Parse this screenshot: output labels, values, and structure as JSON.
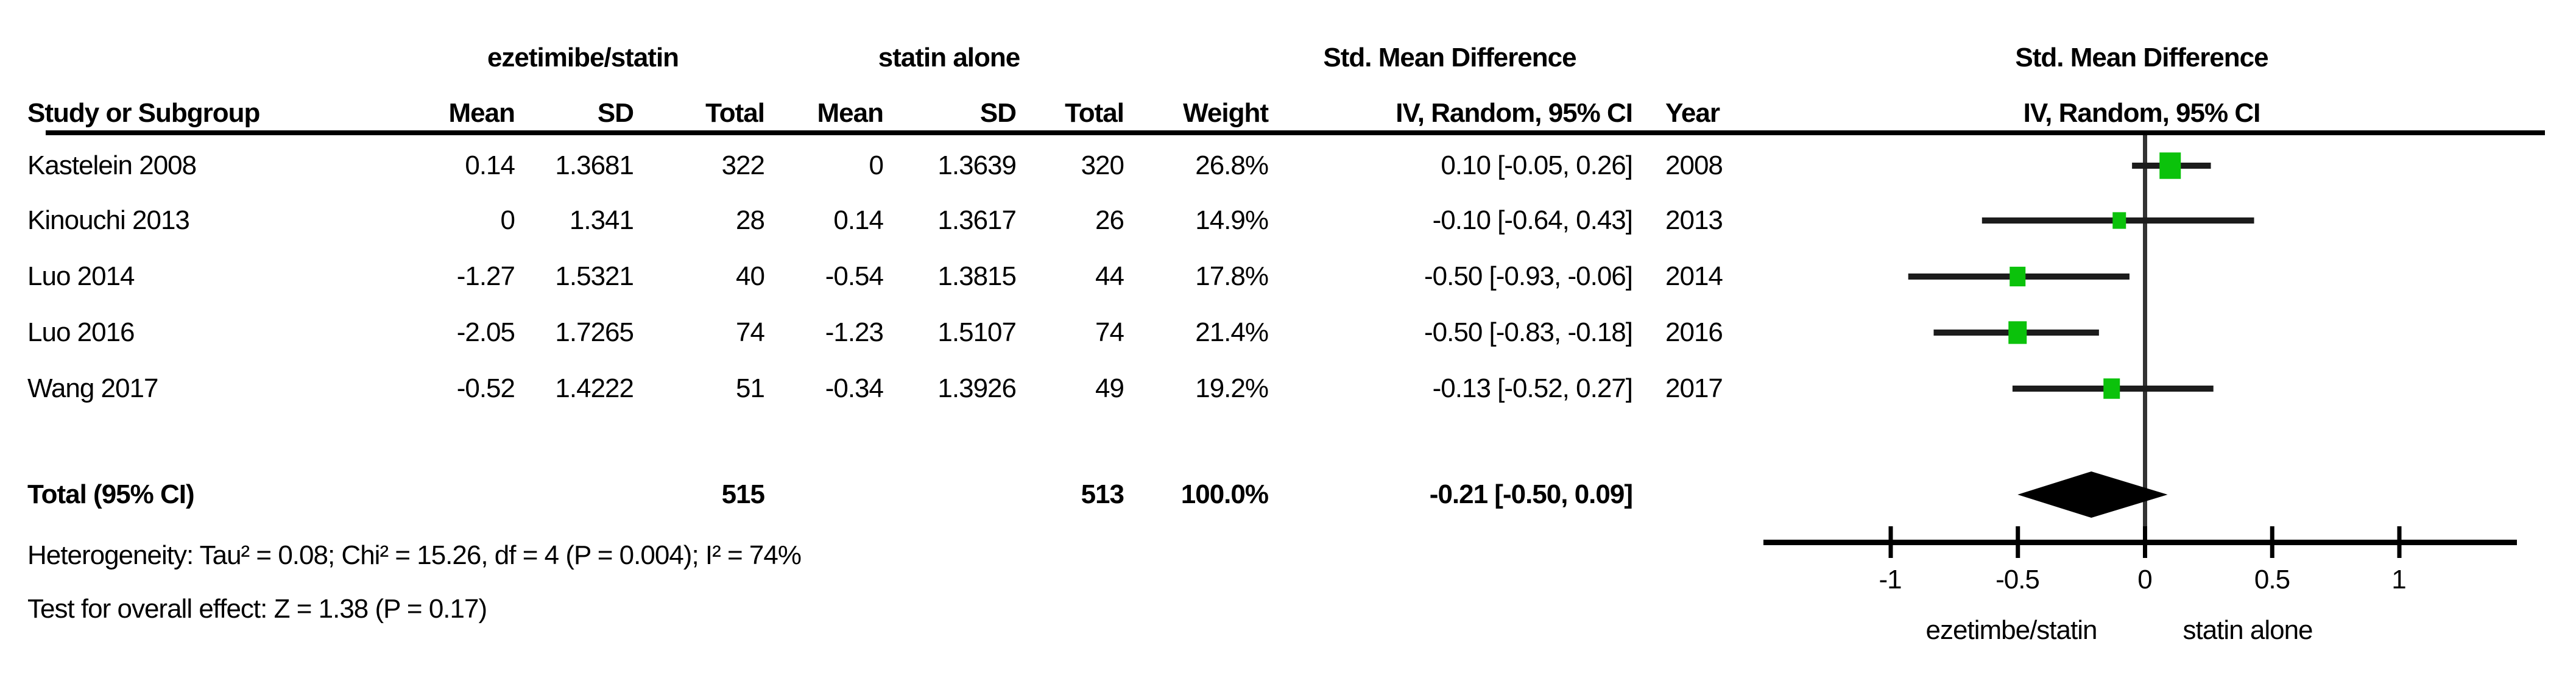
{
  "header": {
    "group1": "ezetimibe/statin",
    "group2": "statin alone",
    "smd_col_title": "Std. Mean Difference",
    "plot_title_line1": "Std. Mean Difference",
    "plot_title_line2": "IV, Random, 95% CI",
    "cols": {
      "study": "Study or Subgroup",
      "mean": "Mean",
      "sd": "SD",
      "total": "Total",
      "weight": "Weight",
      "ci": "IV, Random, 95% CI",
      "year": "Year"
    }
  },
  "rows": [
    {
      "study": "Kastelein 2008",
      "mean1": "0.14",
      "sd1": "1.3681",
      "total1": "322",
      "mean2": "0",
      "sd2": "1.3639",
      "total2": "320",
      "weight": "26.8%",
      "ci": "0.10 [-0.05, 0.26]",
      "year": "2008"
    },
    {
      "study": "Kinouchi 2013",
      "mean1": "0",
      "sd1": "1.341",
      "total1": "28",
      "mean2": "0.14",
      "sd2": "1.3617",
      "total2": "26",
      "weight": "14.9%",
      "ci": "-0.10 [-0.64, 0.43]",
      "year": "2013"
    },
    {
      "study": "Luo 2014",
      "mean1": "-1.27",
      "sd1": "1.5321",
      "total1": "40",
      "mean2": "-0.54",
      "sd2": "1.3815",
      "total2": "44",
      "weight": "17.8%",
      "ci": "-0.50 [-0.93, -0.06]",
      "year": "2014"
    },
    {
      "study": "Luo 2016",
      "mean1": "-2.05",
      "sd1": "1.7265",
      "total1": "74",
      "mean2": "-1.23",
      "sd2": "1.5107",
      "total2": "74",
      "weight": "21.4%",
      "ci": "-0.50 [-0.83, -0.18]",
      "year": "2016"
    },
    {
      "study": "Wang 2017",
      "mean1": "-0.52",
      "sd1": "1.4222",
      "total1": "51",
      "mean2": "-0.34",
      "sd2": "1.3926",
      "total2": "49",
      "weight": "19.2%",
      "ci": "-0.13 [-0.52, 0.27]",
      "year": "2017"
    }
  ],
  "total_row": {
    "label": "Total (95% CI)",
    "total1": "515",
    "total2": "513",
    "weight": "100.0%",
    "ci": "-0.21 [-0.50, 0.09]"
  },
  "footer": {
    "heterogeneity": "Heterogeneity: Tau² = 0.08; Chi² = 15.26, df = 4 (P = 0.004); I² = 74%",
    "overall": "Test for overall effect: Z = 1.38 (P = 0.17)"
  },
  "axis": {
    "tick_labels": [
      "-1",
      "-0.5",
      "0",
      "0.5",
      "1"
    ],
    "favour_left": "ezetimbe/statin",
    "favour_right": "statin alone"
  },
  "colors": {
    "marker_green": "#0bc20b",
    "ci_line": "#1c1c1c",
    "diamond": "#000000",
    "rule": "#000000",
    "zero_line": "#333333"
  },
  "chart_data": {
    "type": "forest",
    "effect_measure": "Std. Mean Difference",
    "model": "IV, Random, 95% CI",
    "ticks": [
      -1,
      -0.5,
      0,
      0.5,
      1
    ],
    "xlim": [
      -1.5,
      1.46
    ],
    "studies": [
      {
        "study": "Kastelein 2008",
        "mean1": 0.14,
        "sd1": 1.3681,
        "n1": 322,
        "mean2": 0,
        "sd2": 1.3639,
        "n2": 320,
        "weight": 26.8,
        "smd": 0.1,
        "ci": [
          -0.05,
          0.26
        ],
        "year": 2008
      },
      {
        "study": "Kinouchi 2013",
        "mean1": 0,
        "sd1": 1.341,
        "n1": 28,
        "mean2": 0.14,
        "sd2": 1.3617,
        "n2": 26,
        "weight": 14.9,
        "smd": -0.1,
        "ci": [
          -0.64,
          0.43
        ],
        "year": 2013
      },
      {
        "study": "Luo 2014",
        "mean1": -1.27,
        "sd1": 1.5321,
        "n1": 40,
        "mean2": -0.54,
        "sd2": 1.3815,
        "n2": 44,
        "weight": 17.8,
        "smd": -0.5,
        "ci": [
          -0.93,
          -0.06
        ],
        "year": 2014
      },
      {
        "study": "Luo 2016",
        "mean1": -2.05,
        "sd1": 1.7265,
        "n1": 74,
        "mean2": -1.23,
        "sd2": 1.5107,
        "n2": 74,
        "weight": 21.4,
        "smd": -0.5,
        "ci": [
          -0.83,
          -0.18
        ],
        "year": 2016
      },
      {
        "study": "Wang 2017",
        "mean1": -0.52,
        "sd1": 1.4222,
        "n1": 51,
        "mean2": -0.34,
        "sd2": 1.3926,
        "n2": 49,
        "weight": 19.2,
        "smd": -0.13,
        "ci": [
          -0.52,
          0.27
        ],
        "year": 2017
      }
    ],
    "total": {
      "n1": 515,
      "n2": 513,
      "weight": 100.0,
      "smd": -0.21,
      "ci": [
        -0.5,
        0.09
      ]
    },
    "heterogeneity": {
      "tau2": 0.08,
      "chi2": 15.26,
      "df": 4,
      "p": 0.004,
      "i2": "74%"
    },
    "overall_effect": {
      "z": 1.38,
      "p": 0.17
    }
  }
}
